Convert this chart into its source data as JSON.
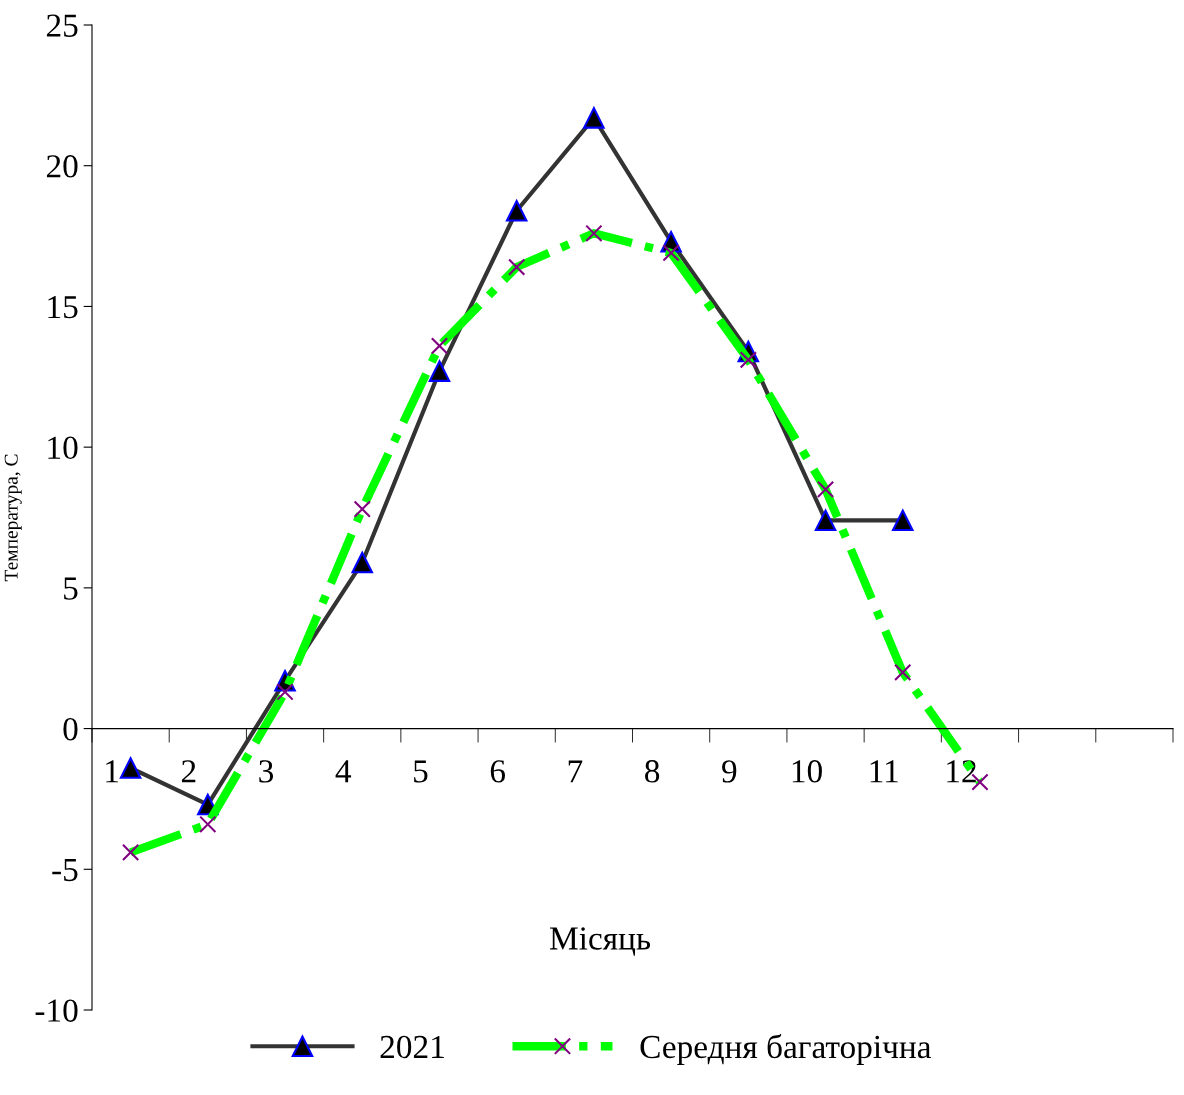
{
  "chart_data": {
    "type": "line",
    "xlabel": "Місяць",
    "ylabel": "Температура, С",
    "categories": [
      "1",
      "2",
      "3",
      "4",
      "5",
      "6",
      "7",
      "8",
      "9",
      "10",
      "11",
      "12",
      null,
      null
    ],
    "series": [
      {
        "name": "2021",
        "color": "#333333",
        "marker": "triangle",
        "line_style": "solid",
        "values": [
          -1.4,
          -2.7,
          1.7,
          5.9,
          12.7,
          18.4,
          21.7,
          17.3,
          13.4,
          7.4,
          7.4,
          null,
          null,
          null
        ]
      },
      {
        "name": "Середня багаторічна",
        "color": "#00ff00",
        "marker": "cross",
        "line_style": "dashed",
        "values": [
          -4.4,
          -3.4,
          1.3,
          7.8,
          13.6,
          16.4,
          17.6,
          16.9,
          13.1,
          8.5,
          2.0,
          -1.9,
          null,
          null
        ]
      }
    ],
    "ylim": [
      -10,
      25
    ],
    "yticks": [
      -10,
      -5,
      0,
      5,
      10,
      15,
      20,
      25
    ],
    "grid": false,
    "legend": "bottom"
  }
}
